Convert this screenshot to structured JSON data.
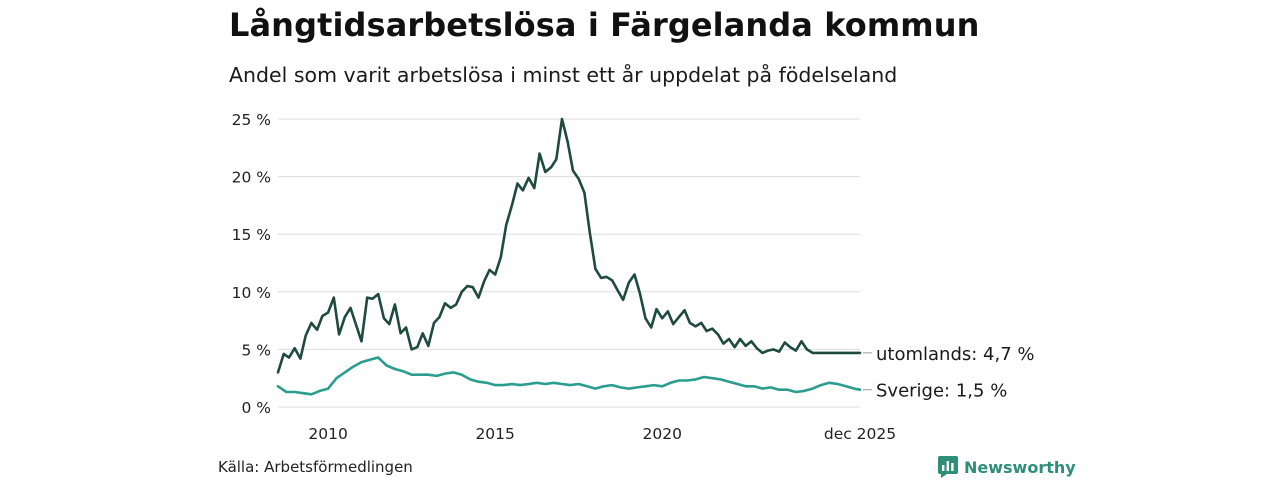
{
  "header": {
    "title": "Långtidsarbetslösa i Färgelanda kommun",
    "subtitle": "Andel som varit arbetslösa i minst ett år uppdelat på födelseland"
  },
  "footer": {
    "source": "Källa: Arbetsförmedlingen",
    "brand": "Newsworthy"
  },
  "colors": {
    "utomlands": "#1e4a40",
    "sverige": "#2a9d8f",
    "grid": "#dddddd",
    "brand": "#2e8f79"
  },
  "chart_data": {
    "type": "line",
    "title": "Långtidsarbetslösa i Färgelanda kommun",
    "xlabel": "",
    "ylabel": "",
    "xlim": [
      2008.5,
      2025.92
    ],
    "ylim": [
      0,
      25
    ],
    "yticks": [
      0,
      5,
      10,
      15,
      20,
      25
    ],
    "ytick_labels": [
      "0 %",
      "5 %",
      "10 %",
      "15 %",
      "20 %",
      "25 %"
    ],
    "xticks": [
      2010,
      2015,
      2020,
      2025.92
    ],
    "xtick_labels": [
      "2010",
      "2015",
      "2020",
      "dec 2025"
    ],
    "grid": true,
    "series": [
      {
        "name": "utomlands",
        "end_label": "utomlands: 4,7 %",
        "x": [
          2008.5,
          2008.67,
          2008.83,
          2009.0,
          2009.17,
          2009.33,
          2009.5,
          2009.67,
          2009.83,
          2010.0,
          2010.17,
          2010.33,
          2010.5,
          2010.67,
          2010.83,
          2011.0,
          2011.17,
          2011.33,
          2011.5,
          2011.67,
          2011.83,
          2012.0,
          2012.17,
          2012.33,
          2012.5,
          2012.67,
          2012.83,
          2013.0,
          2013.17,
          2013.33,
          2013.5,
          2013.67,
          2013.83,
          2014.0,
          2014.17,
          2014.33,
          2014.5,
          2014.67,
          2014.83,
          2015.0,
          2015.17,
          2015.33,
          2015.5,
          2015.67,
          2015.83,
          2016.0,
          2016.17,
          2016.33,
          2016.5,
          2016.67,
          2016.83,
          2017.0,
          2017.17,
          2017.33,
          2017.5,
          2017.67,
          2017.83,
          2018.0,
          2018.17,
          2018.33,
          2018.5,
          2018.67,
          2018.83,
          2019.0,
          2019.17,
          2019.33,
          2019.5,
          2019.67,
          2019.83,
          2020.0,
          2020.17,
          2020.33,
          2020.5,
          2020.67,
          2020.83,
          2021.0,
          2021.17,
          2021.33,
          2021.5,
          2021.67,
          2021.83,
          2022.0,
          2022.17,
          2022.33,
          2022.5,
          2022.67,
          2022.83,
          2023.0,
          2023.17,
          2023.33,
          2023.5,
          2023.67,
          2023.83,
          2024.0,
          2024.17,
          2024.33,
          2024.5,
          2024.67,
          2024.83,
          2025.0,
          2025.17,
          2025.33,
          2025.5,
          2025.67,
          2025.83,
          2025.92
        ],
        "values": [
          3.0,
          4.6,
          4.3,
          5.1,
          4.2,
          6.2,
          7.3,
          6.7,
          7.9,
          8.2,
          9.5,
          6.3,
          7.8,
          8.6,
          7.2,
          5.7,
          9.5,
          9.4,
          9.8,
          7.7,
          7.2,
          8.9,
          6.4,
          6.9,
          5.0,
          5.2,
          6.4,
          5.3,
          7.3,
          7.8,
          9.0,
          8.6,
          8.9,
          10.0,
          10.5,
          10.4,
          9.5,
          10.9,
          11.9,
          11.5,
          13.0,
          15.8,
          17.5,
          19.4,
          18.8,
          19.9,
          19.0,
          22.0,
          20.4,
          20.8,
          21.5,
          25.0,
          23.0,
          20.5,
          19.8,
          18.6,
          15.2,
          12.0,
          11.2,
          11.3,
          11.0,
          10.1,
          9.3,
          10.8,
          11.5,
          9.9,
          7.7,
          6.9,
          8.5,
          7.7,
          8.3,
          7.2,
          7.8,
          8.4,
          7.3,
          7.0,
          7.3,
          6.6,
          6.8,
          6.3,
          5.5,
          5.9,
          5.2,
          5.9,
          5.3,
          5.7,
          5.1,
          4.7,
          4.9,
          5.0,
          4.8,
          5.6,
          5.2,
          4.9,
          5.7,
          5.0,
          4.7,
          4.7,
          4.7,
          4.7,
          4.7,
          4.7,
          4.7,
          4.7,
          4.7,
          4.7
        ]
      },
      {
        "name": "Sverige",
        "end_label": "Sverige: 1,5 %",
        "x": [
          2008.5,
          2008.75,
          2009.0,
          2009.25,
          2009.5,
          2009.75,
          2010.0,
          2010.25,
          2010.5,
          2010.75,
          2011.0,
          2011.25,
          2011.5,
          2011.75,
          2012.0,
          2012.25,
          2012.5,
          2012.75,
          2013.0,
          2013.25,
          2013.5,
          2013.75,
          2014.0,
          2014.25,
          2014.5,
          2014.75,
          2015.0,
          2015.25,
          2015.5,
          2015.75,
          2016.0,
          2016.25,
          2016.5,
          2016.75,
          2017.0,
          2017.25,
          2017.5,
          2017.75,
          2018.0,
          2018.25,
          2018.5,
          2018.75,
          2019.0,
          2019.25,
          2019.5,
          2019.75,
          2020.0,
          2020.25,
          2020.5,
          2020.75,
          2021.0,
          2021.25,
          2021.5,
          2021.75,
          2022.0,
          2022.25,
          2022.5,
          2022.75,
          2023.0,
          2023.25,
          2023.5,
          2023.75,
          2024.0,
          2024.25,
          2024.5,
          2024.75,
          2025.0,
          2025.25,
          2025.5,
          2025.75,
          2025.92
        ],
        "values": [
          1.8,
          1.3,
          1.3,
          1.2,
          1.1,
          1.4,
          1.6,
          2.5,
          3.0,
          3.5,
          3.9,
          4.1,
          4.3,
          3.6,
          3.3,
          3.1,
          2.8,
          2.8,
          2.8,
          2.7,
          2.9,
          3.0,
          2.8,
          2.4,
          2.2,
          2.1,
          1.9,
          1.9,
          2.0,
          1.9,
          2.0,
          2.1,
          2.0,
          2.1,
          2.0,
          1.9,
          2.0,
          1.8,
          1.6,
          1.8,
          1.9,
          1.7,
          1.6,
          1.7,
          1.8,
          1.9,
          1.8,
          2.1,
          2.3,
          2.3,
          2.4,
          2.6,
          2.5,
          2.4,
          2.2,
          2.0,
          1.8,
          1.8,
          1.6,
          1.7,
          1.5,
          1.5,
          1.3,
          1.4,
          1.6,
          1.9,
          2.1,
          2.0,
          1.8,
          1.6,
          1.5
        ]
      }
    ]
  }
}
